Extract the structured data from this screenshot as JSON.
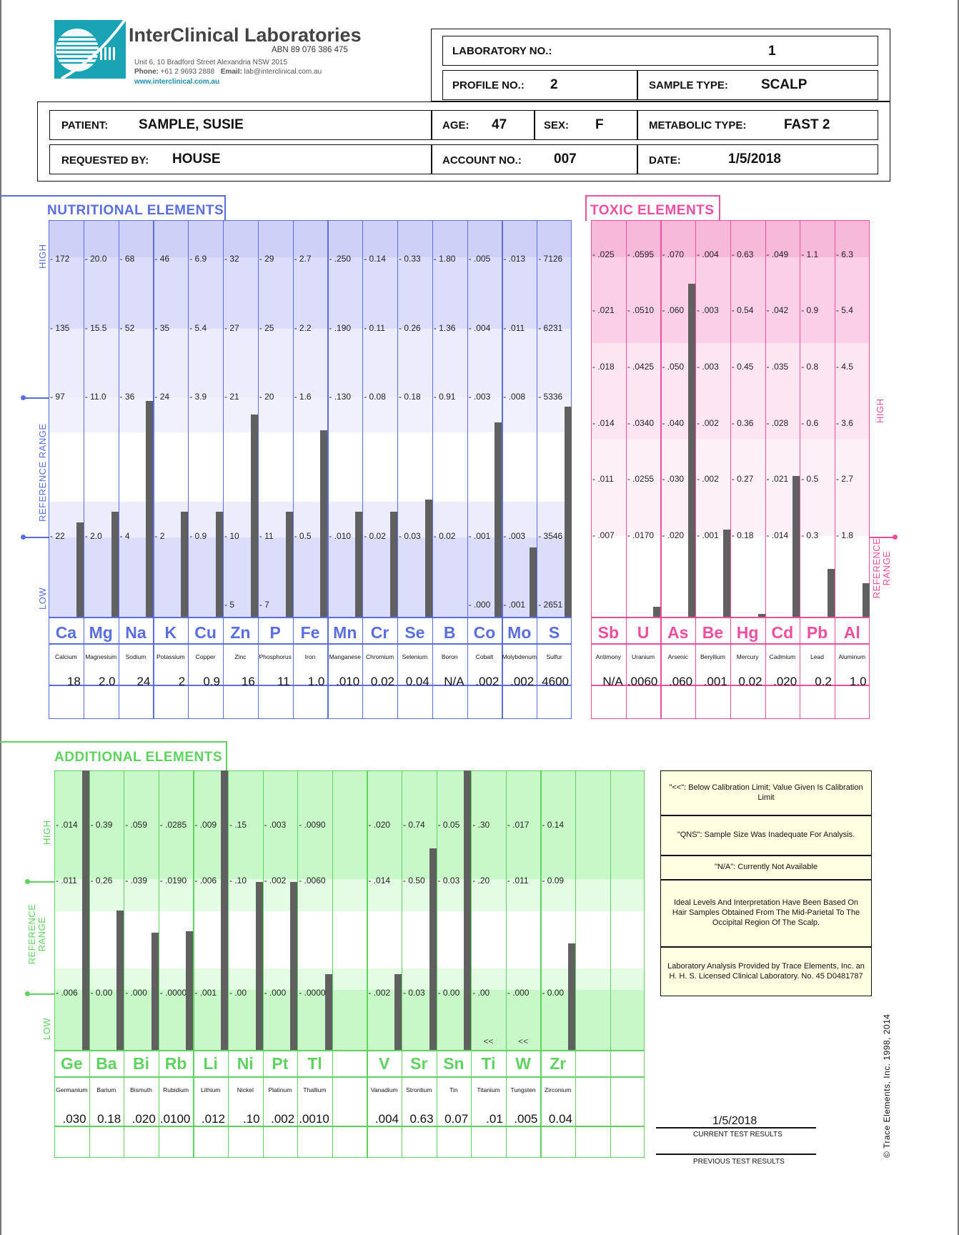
{
  "header": {
    "lab_name": "InterClinical Laboratories",
    "abn": "ABN 89 076 386 475",
    "address": "Unit 6, 10 Bradford Street Alexandria NSW 2015",
    "phone_label": "Phone:",
    "phone": "+61 2 9693 2888",
    "email_label": "Email:",
    "email": "lab@interclinical.com.au",
    "website": "www.interclinical.com.au",
    "laboratory_no_label": "LABORATORY NO.:",
    "laboratory_no": "1",
    "profile_no_label": "PROFILE NO.:",
    "profile_no": "2",
    "sample_type_label": "SAMPLE TYPE:",
    "sample_type": "SCALP",
    "patient_label": "PATIENT:",
    "patient": "SAMPLE, SUSIE",
    "age_label": "AGE:",
    "age": "47",
    "sex_label": "SEX:",
    "sex": "F",
    "metabolic_type_label": "METABOLIC TYPE:",
    "metabolic_type": "FAST 2",
    "requested_by_label": "REQUESTED BY:",
    "requested_by": "HOUSE",
    "account_no_label": "ACCOUNT NO.:",
    "account_no": "007",
    "date_label": "DATE:",
    "date": "1/5/2018"
  },
  "nutritional": {
    "title": "NUTRITIONAL  ELEMENTS",
    "side_high": "HIGH",
    "side_ref": "REFERENCE  RANGE",
    "side_low": "LOW",
    "columns": [
      {
        "sym": "Ca",
        "name": "Calcium",
        "value": "18",
        "level": 0.238,
        "ticks": [
          "172",
          "135",
          "97",
          "22",
          ""
        ]
      },
      {
        "sym": "Mg",
        "name": "Magnesium",
        "value": "2.0",
        "level": 0.265,
        "ticks": [
          "20.0",
          "15.5",
          "11.0",
          "2.0",
          ""
        ]
      },
      {
        "sym": "Na",
        "name": "Sodium",
        "value": "24",
        "level": 0.545,
        "ticks": [
          "68",
          "52",
          "36",
          "4",
          ""
        ]
      },
      {
        "sym": "K",
        "name": "Potassium",
        "value": "2",
        "level": 0.265,
        "ticks": [
          "46",
          "35",
          "24",
          "2",
          ""
        ]
      },
      {
        "sym": "Cu",
        "name": "Copper",
        "value": "0.9",
        "level": 0.265,
        "ticks": [
          "6.9",
          "5.4",
          "3.9",
          "0.9",
          ""
        ]
      },
      {
        "sym": "Zn",
        "name": "Zinc",
        "value": "16",
        "level": 0.51,
        "ticks": [
          "32",
          "27",
          "21",
          "10",
          "5"
        ]
      },
      {
        "sym": "P",
        "name": "Phosphorus",
        "value": "11",
        "level": 0.265,
        "ticks": [
          "29",
          "25",
          "20",
          "11",
          "7"
        ]
      },
      {
        "sym": "Fe",
        "name": "Iron",
        "value": "1.0",
        "level": 0.47,
        "ticks": [
          "2.7",
          "2.2",
          "1.6",
          "0.5",
          ""
        ]
      },
      {
        "sym": "Mn",
        "name": "Manganese",
        "value": ".010",
        "level": 0.265,
        "ticks": [
          ".250",
          ".190",
          ".130",
          ".010",
          ""
        ]
      },
      {
        "sym": "Cr",
        "name": "Chromium",
        "value": "0.02",
        "level": 0.265,
        "ticks": [
          "0.14",
          "0.11",
          "0.08",
          "0.02",
          ""
        ]
      },
      {
        "sym": "Se",
        "name": "Selenium",
        "value": "0.04",
        "level": 0.295,
        "ticks": [
          "0.33",
          "0.26",
          "0.18",
          "0.03",
          ""
        ]
      },
      {
        "sym": "B",
        "name": "Boron",
        "value": "N/A",
        "level": 0,
        "ticks": [
          "1.80",
          "1.36",
          "0.91",
          "0.02",
          ""
        ]
      },
      {
        "sym": "Co",
        "name": "Cobalt",
        "value": ".002",
        "level": 0.49,
        "ticks": [
          ".005",
          ".004",
          ".003",
          ".001",
          ".000"
        ]
      },
      {
        "sym": "Mo",
        "name": "Molybdenum",
        "value": ".002",
        "level": 0.175,
        "ticks": [
          ".013",
          ".011",
          ".008",
          ".003",
          ".001"
        ]
      },
      {
        "sym": "S",
        "name": "Sulfur",
        "value": "4600",
        "level": 0.53,
        "ticks": [
          "7126",
          "6231",
          "5336",
          "3546",
          "2651"
        ]
      }
    ]
  },
  "toxic": {
    "title": "TOXIC  ELEMENTS",
    "side_high": "HIGH",
    "side_ref": "REFERENCE RANGE",
    "columns": [
      {
        "sym": "Sb",
        "name": "Antimony",
        "value": "N/A",
        "level": 0,
        "ticks": [
          ".025",
          ".021",
          ".018",
          ".014",
          ".011",
          ".007"
        ]
      },
      {
        "sym": "U",
        "name": "Uranium",
        "value": ".0060",
        "level": 0.025,
        "ticks": [
          ".0595",
          ".0510",
          ".0425",
          ".0340",
          ".0255",
          ".0170"
        ]
      },
      {
        "sym": "As",
        "name": "Arsenic",
        "value": ".060",
        "level": 0.84,
        "ticks": [
          ".070",
          ".060",
          ".050",
          ".040",
          ".030",
          ".020"
        ]
      },
      {
        "sym": "Be",
        "name": "Beryllium",
        "value": ".001",
        "level": 0.22,
        "ticks": [
          ".004",
          ".003",
          ".003",
          ".002",
          ".002",
          ".001"
        ]
      },
      {
        "sym": "Hg",
        "name": "Mercury",
        "value": "0.02",
        "level": 0.007,
        "ticks": [
          "0.63",
          "0.54",
          "0.45",
          "0.36",
          "0.27",
          "0.18"
        ]
      },
      {
        "sym": "Cd",
        "name": "Cadmium",
        "value": ".020",
        "level": 0.355,
        "ticks": [
          ".049",
          ".042",
          ".035",
          ".028",
          ".021",
          ".014"
        ]
      },
      {
        "sym": "Pb",
        "name": "Lead",
        "value": "0.2",
        "level": 0.12,
        "ticks": [
          "1.1",
          "0.9",
          "0.8",
          "0.6",
          "0.5",
          "0.3"
        ]
      },
      {
        "sym": "Al",
        "name": "Aluminum",
        "value": "1.0",
        "level": 0.085,
        "ticks": [
          "6.3",
          "5.4",
          "4.5",
          "3.6",
          "2.7",
          "1.8"
        ]
      }
    ]
  },
  "additional": {
    "title": "ADDITIONAL  ELEMENTS",
    "side_high": "HIGH",
    "side_ref": "REFERENCE RANGE",
    "side_low": "LOW",
    "columns": [
      {
        "sym": "Ge",
        "name": "Germanium",
        "value": ".030",
        "level": 1.0,
        "ticks": [
          ".014",
          ".011",
          "",
          ".006"
        ],
        "mark": ""
      },
      {
        "sym": "Ba",
        "name": "Barium",
        "value": "0.18",
        "level": 0.5,
        "ticks": [
          "0.39",
          "0.26",
          "",
          "0.00"
        ],
        "mark": ""
      },
      {
        "sym": "Bi",
        "name": "Bismuth",
        "value": ".020",
        "level": 0.42,
        "ticks": [
          ".059",
          ".039",
          "",
          ".000"
        ],
        "mark": ""
      },
      {
        "sym": "Rb",
        "name": "Rubidium",
        "value": ".0100",
        "level": 0.425,
        "ticks": [
          ".0285",
          ".0190",
          "",
          ".0000"
        ],
        "mark": ""
      },
      {
        "sym": "Li",
        "name": "Lithium",
        "value": ".012",
        "level": 1.0,
        "ticks": [
          ".009",
          ".006",
          "",
          ".001"
        ],
        "mark": ""
      },
      {
        "sym": "Ni",
        "name": "Nickel",
        "value": ".10",
        "level": 0.6,
        "ticks": [
          ".15",
          ".10",
          "",
          ".00"
        ],
        "mark": ""
      },
      {
        "sym": "Pt",
        "name": "Platinum",
        "value": ".002",
        "level": 0.6,
        "ticks": [
          ".003",
          ".002",
          "",
          ".000"
        ],
        "mark": ""
      },
      {
        "sym": "Tl",
        "name": "Thallium",
        "value": ".0010",
        "level": 0.27,
        "ticks": [
          ".0090",
          ".0060",
          "",
          ".0000"
        ],
        "mark": ""
      },
      {
        "sym": "",
        "name": "",
        "value": "",
        "level": 0,
        "ticks": [
          "",
          "",
          "",
          ""
        ],
        "mark": ""
      },
      {
        "sym": "V",
        "name": "Vanadium",
        "value": ".004",
        "level": 0.27,
        "ticks": [
          ".020",
          ".014",
          "",
          ".002"
        ],
        "mark": ""
      },
      {
        "sym": "Sr",
        "name": "Strontium",
        "value": "0.63",
        "level": 0.72,
        "ticks": [
          "0.74",
          "0.50",
          "",
          "0.03"
        ],
        "mark": ""
      },
      {
        "sym": "Sn",
        "name": "Tin",
        "value": "0.07",
        "level": 1.0,
        "ticks": [
          "0.05",
          "0.03",
          "",
          "0.00"
        ],
        "mark": ""
      },
      {
        "sym": "Ti",
        "name": "Titanium",
        "value": ".01",
        "level": 0,
        "ticks": [
          ".30",
          ".20",
          "",
          ".00"
        ],
        "mark": "<<"
      },
      {
        "sym": "W",
        "name": "Tungsten",
        "value": ".005",
        "level": 0,
        "ticks": [
          ".017",
          ".011",
          "",
          ".000"
        ],
        "mark": "<<"
      },
      {
        "sym": "Zr",
        "name": "Zirconium",
        "value": "0.04",
        "level": 0.38,
        "ticks": [
          "0.14",
          "0.09",
          "",
          "0.00"
        ],
        "mark": ""
      },
      {
        "sym": "",
        "name": "",
        "value": "",
        "level": 0,
        "ticks": [
          "",
          "",
          "",
          ""
        ],
        "mark": ""
      },
      {
        "sym": "",
        "name": "",
        "value": "",
        "level": 0,
        "ticks": [
          "",
          "",
          "",
          ""
        ],
        "mark": ""
      }
    ]
  },
  "notes": [
    "\"<<\": Below Calibration Limit; Value Given Is Calibration Limit",
    "\"QNS\": Sample Size Was Inadequate For Analysis.",
    "\"N/A\": Currently Not Available",
    "Ideal Levels And Interpretation Have Been Based On Hair Samples Obtained From The Mid-Parietal To The Occipital Region Of The Scalp.",
    "Laboratory Analysis Provided by Trace Elements, Inc. an H. H. S. Licensed Clinical Laboratory.  No. 45 D0481787"
  ],
  "footer": {
    "current_date": "1/5/2018",
    "current_label": "CURRENT  TEST  RESULTS",
    "previous_label": "PREVIOUS  TEST  RESULTS",
    "copyright": "© Trace Elements, Inc. 1998, 2014"
  },
  "colors": {
    "nutri": "#5a6ee0",
    "nutri_band_dark": "#cfd0f8",
    "nutri_band_mid": "#dcdcfb",
    "nutri_band_light": "#ececfd",
    "toxic": "#ee4ea0",
    "toxic_band_dark": "#f7b9d9",
    "toxic_band_mid": "#fbd0e6",
    "toxic_band_light": "#fde6f1",
    "add": "#5fd35f",
    "add_band_dark": "#c8f8c8",
    "add_band_light": "#e4fbe4",
    "bar": "#606060",
    "note_bg": "#ffffe2"
  }
}
